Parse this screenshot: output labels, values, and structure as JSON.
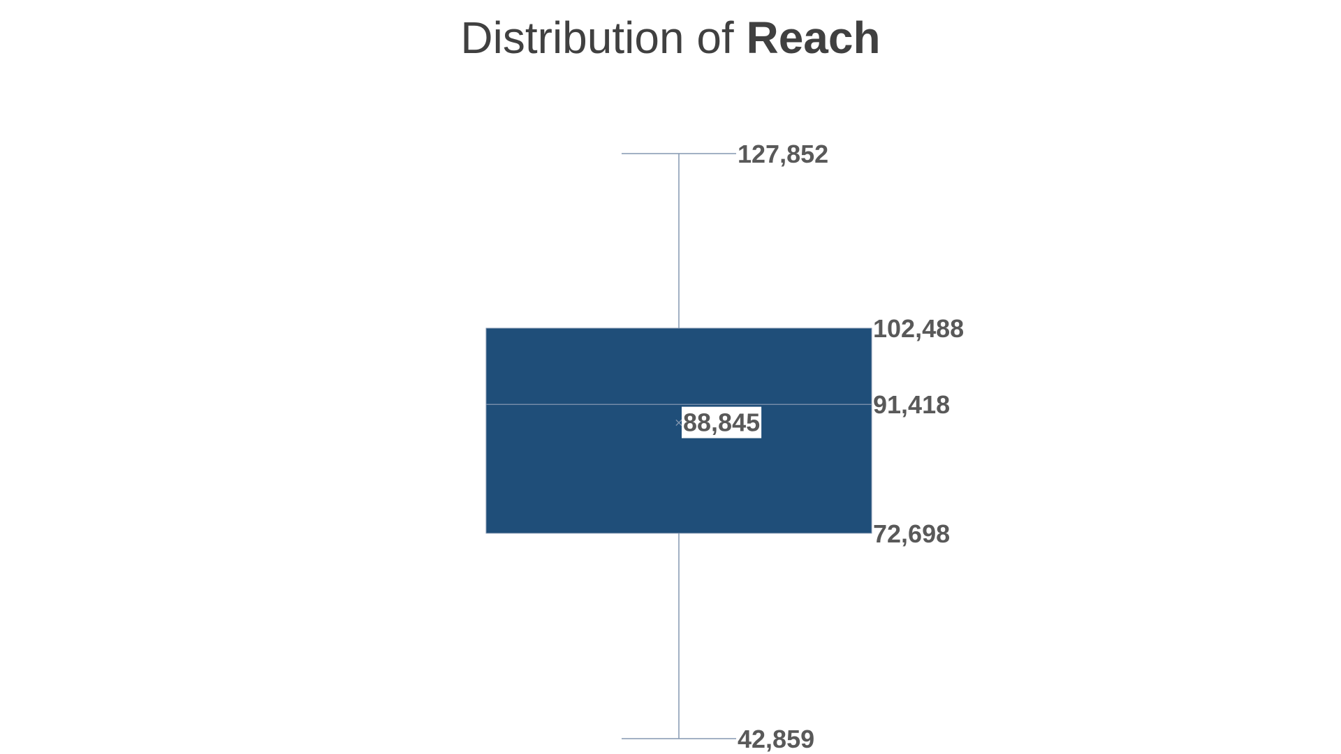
{
  "title": {
    "prefix": "Distribution of ",
    "emphasis": "Reach"
  },
  "colors": {
    "box_fill": "#1F4E79",
    "whisker": "#8497B0",
    "label_text": "#595959",
    "title_text": "#404040",
    "mean_label_bg": "#FFFFFF"
  },
  "chart_data": {
    "type": "box",
    "title": "Distribution of Reach",
    "series": [
      {
        "max": 127852,
        "q3": 102488,
        "median": 91418,
        "mean": 88845,
        "q1": 72698,
        "min": 42859
      }
    ],
    "labels": {
      "max": "127,852",
      "q3": "102,488",
      "median": "91,418",
      "mean": "88,845",
      "q1": "72,698",
      "min": "42,859"
    },
    "ylim": [
      42859,
      127852
    ],
    "grid": false,
    "legend": "none"
  }
}
